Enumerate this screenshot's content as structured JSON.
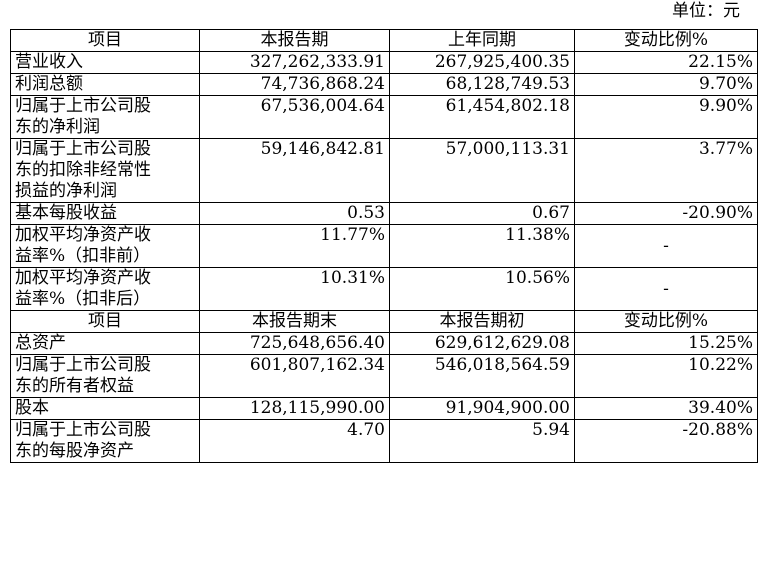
{
  "unit_label": "单位：元",
  "header1": [
    "项目",
    "本报告期",
    "上年同期",
    "变动比例%"
  ],
  "rows1": [
    {
      "label": [
        "营业收入"
      ],
      "current": "327,262,333.91",
      "previous": "267,925,400.35",
      "change": "22.15%"
    },
    {
      "label": [
        "利润总额"
      ],
      "current": "74,736,868.24",
      "previous": "68,128,749.53",
      "change": "9.70%"
    },
    {
      "label": [
        "归属于上市公司股",
        "东的净利润"
      ],
      "current": "67,536,004.64",
      "previous": "61,454,802.18",
      "change": "9.90%"
    },
    {
      "label": [
        "归属于上市公司股",
        "东的扣除非经常性",
        "损益的净利润"
      ],
      "current": "59,146,842.81",
      "previous": "57,000,113.31",
      "change": "3.77%"
    },
    {
      "label": [
        "基本每股收益"
      ],
      "current": "0.53",
      "previous": "0.67",
      "change": "-20.90%"
    },
    {
      "label": [
        "加权平均净资产收",
        "益率%（扣非前）"
      ],
      "current": "11.77%",
      "previous": "11.38%",
      "change": "-"
    },
    {
      "label": [
        "加权平均净资产收",
        "益率%（扣非后）"
      ],
      "current": "10.31%",
      "previous": "10.56%",
      "change": "-"
    }
  ],
  "header2": [
    "项目",
    "本报告期末",
    "本报告期初",
    "变动比例%"
  ],
  "rows2": [
    {
      "label": [
        "总资产"
      ],
      "current": "725,648,656.40",
      "previous": "629,612,629.08",
      "change": "15.25%"
    },
    {
      "label": [
        "归属于上市公司股",
        "东的所有者权益"
      ],
      "current": "601,807,162.34",
      "previous": "546,018,564.59",
      "change": "10.22%"
    },
    {
      "label": [
        "股本"
      ],
      "current": "128,115,990.00",
      "previous": "91,904,900.00",
      "change": "39.40%"
    },
    {
      "label": [
        "归属于上市公司股",
        "东的每股净资产"
      ],
      "current": "4.70",
      "previous": "5.94",
      "change": "-20.88%"
    }
  ]
}
